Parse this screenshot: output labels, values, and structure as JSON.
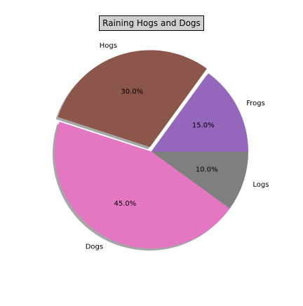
{
  "chart_data": {
    "type": "pie",
    "title": "Raining Hogs and Dogs",
    "labels": [
      "Frogs",
      "Hogs",
      "Dogs",
      "Logs"
    ],
    "values": [
      15,
      30,
      45,
      10
    ],
    "percent_labels": [
      "15.0%",
      "30.0%",
      "45.0%",
      "10.0%"
    ],
    "colors": [
      "#9467bd",
      "#8c564b",
      "#e377c2",
      "#7f7f7f"
    ],
    "explode": [
      0,
      0.05,
      0,
      0
    ],
    "shadow": true,
    "start_angle_degrees": 0,
    "direction": "counterclockwise"
  }
}
